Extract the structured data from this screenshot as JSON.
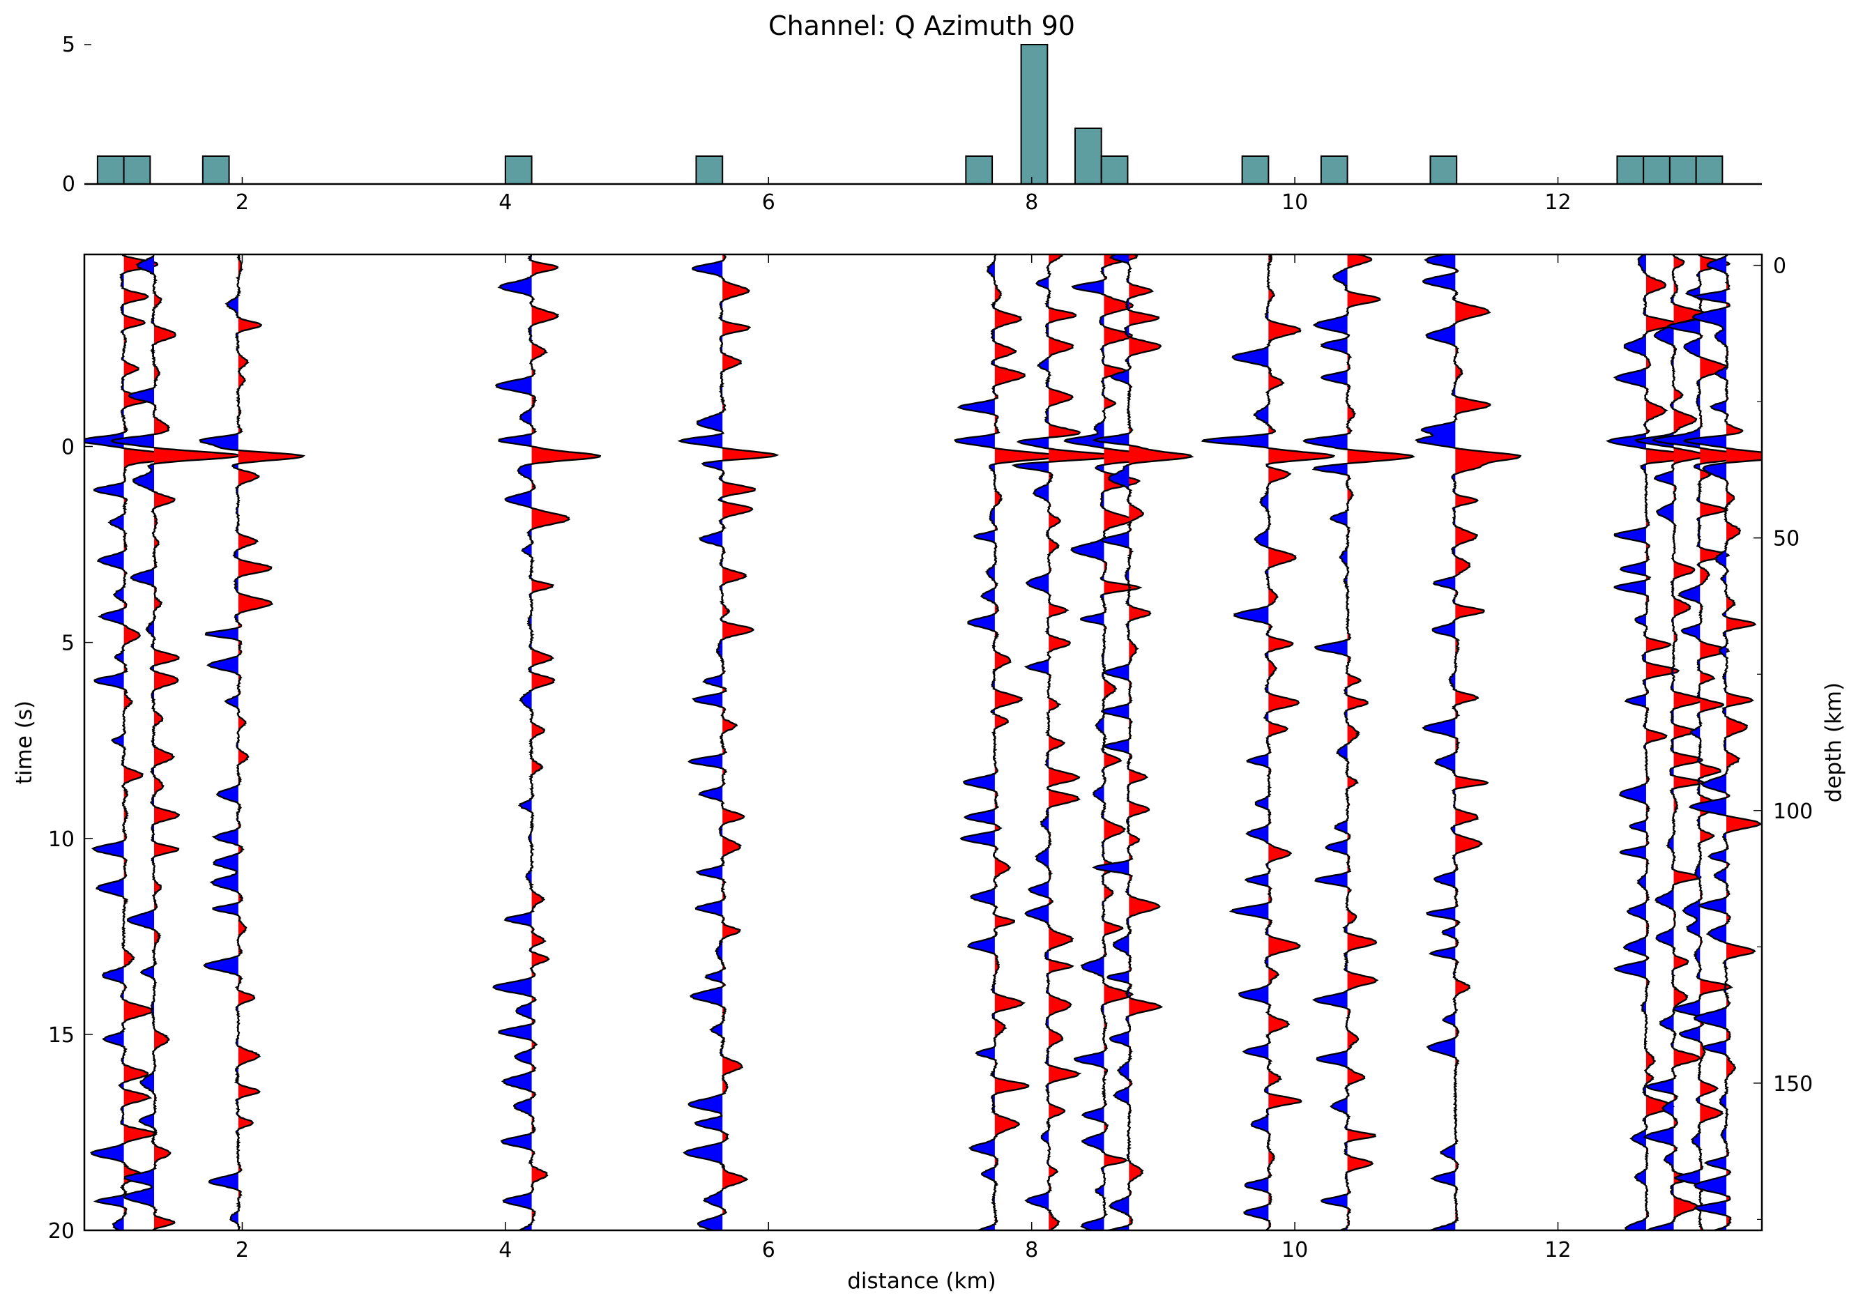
{
  "chart_data": [
    {
      "type": "bar",
      "panel": "histogram",
      "title": "Channel: Q Azimuth 90",
      "xlabel": "",
      "ylabel": "",
      "xlim": [
        0.8,
        13.55
      ],
      "ylim": [
        0,
        5
      ],
      "bin_width": 0.2,
      "bar_color": "#5f9ea0",
      "x_ticks": [
        "2",
        "4",
        "6",
        "8",
        "10",
        "12"
      ],
      "y_ticks": [
        "0",
        "5"
      ],
      "bins": [
        {
          "x": 0.9,
          "count": 1
        },
        {
          "x": 1.1,
          "count": 1
        },
        {
          "x": 1.7,
          "count": 1
        },
        {
          "x": 4.0,
          "count": 1
        },
        {
          "x": 5.45,
          "count": 1
        },
        {
          "x": 7.5,
          "count": 1
        },
        {
          "x": 7.92,
          "count": 5
        },
        {
          "x": 8.33,
          "count": 2
        },
        {
          "x": 8.53,
          "count": 1
        },
        {
          "x": 9.6,
          "count": 1
        },
        {
          "x": 10.2,
          "count": 1
        },
        {
          "x": 11.03,
          "count": 1
        },
        {
          "x": 12.45,
          "count": 1
        },
        {
          "x": 12.65,
          "count": 1
        },
        {
          "x": 12.85,
          "count": 1
        },
        {
          "x": 13.05,
          "count": 1
        }
      ]
    },
    {
      "type": "line",
      "panel": "wiggle-traces",
      "xlabel": "distance (km)",
      "ylabel": "time (s)",
      "y2label": "depth (km)",
      "xlim": [
        0.8,
        13.55
      ],
      "ylim": [
        20,
        -4.9
      ],
      "y2lim": [
        177,
        -2
      ],
      "x_ticks": [
        "2",
        "4",
        "6",
        "8",
        "10",
        "12"
      ],
      "y_ticks": [
        "0",
        "5",
        "10",
        "15",
        "20"
      ],
      "y2_ticks": [
        "0",
        "50",
        "100",
        "150"
      ],
      "positive_fill": "#ff0000",
      "negative_fill": "#0000ff",
      "trace_distances": [
        1.1,
        1.33,
        1.97,
        4.2,
        5.65,
        7.72,
        8.13,
        8.55,
        8.74,
        9.8,
        10.4,
        11.22,
        12.67,
        12.88,
        13.08,
        13.28
      ],
      "trace_amplitude_scale": [
        0.6,
        0.6,
        0.6,
        0.65,
        0.65,
        0.6,
        0.6,
        0.6,
        0.6,
        0.62,
        0.62,
        0.62,
        0.55,
        0.55,
        0.55,
        0.6
      ]
    }
  ],
  "colors": {
    "background": "#ffffff",
    "axes": "#000000",
    "bar": "#5f9ea0",
    "positive": "#ff0000",
    "negative": "#0000ff"
  }
}
